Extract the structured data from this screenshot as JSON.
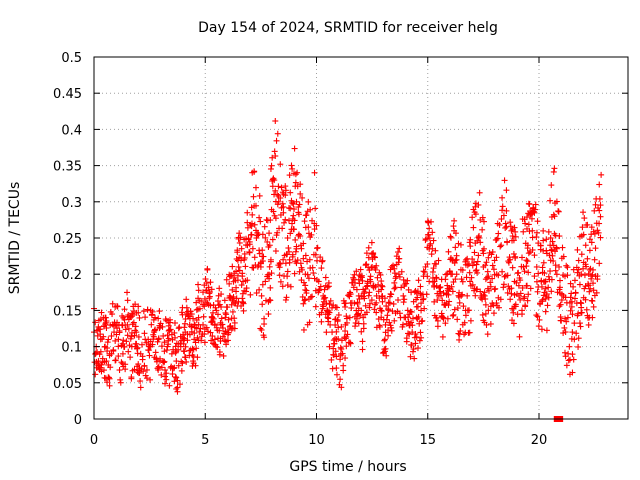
{
  "chart_data": {
    "type": "scatter",
    "title": "Day 154 of 2024, SRMTID for receiver helg",
    "xlabel": "GPS time / hours",
    "ylabel": "SRMTID / TECUs",
    "xlim": [
      0,
      24
    ],
    "ylim": [
      0,
      0.5
    ],
    "xticks": [
      0,
      5,
      10,
      15,
      20
    ],
    "xtick_labels": [
      "0",
      "5",
      "10",
      "15",
      "20"
    ],
    "yticks": [
      0,
      0.05,
      0.1,
      0.15,
      0.2,
      0.25,
      0.3,
      0.35,
      0.4,
      0.45,
      0.5
    ],
    "ytick_labels": [
      "0",
      "0.05",
      "0.1",
      "0.15",
      "0.2",
      "0.25",
      "0.3",
      "0.35",
      "0.4",
      "0.45",
      "0.5"
    ],
    "grid": true,
    "marker": "+",
    "marker_color": "#ff0000",
    "series": [
      {
        "name": "SRMTID",
        "x": [
          0.0,
          0.1,
          0.2,
          0.3,
          0.5,
          0.7,
          0.9,
          1.1,
          1.3,
          1.5,
          1.7,
          1.9,
          2.1,
          2.3,
          2.5,
          2.7,
          2.9,
          3.1,
          3.3,
          3.5,
          3.7,
          3.9,
          4.1,
          4.3,
          4.5,
          4.7,
          4.9,
          5.1,
          5.3,
          5.5,
          5.7,
          5.9,
          6.1,
          6.3,
          6.5,
          6.7,
          6.9,
          7.1,
          7.3,
          7.5,
          7.7,
          7.9,
          8.1,
          8.3,
          8.5,
          8.7,
          8.9,
          9.1,
          9.3,
          9.5,
          9.7,
          9.9,
          10.1,
          10.3,
          10.5,
          10.7,
          10.9,
          11.1,
          11.3,
          11.5,
          11.7,
          11.9,
          12.1,
          12.3,
          12.5,
          12.7,
          12.9,
          13.1,
          13.3,
          13.5,
          13.7,
          13.9,
          14.1,
          14.3,
          14.5,
          14.7,
          14.9,
          15.1,
          15.3,
          15.5,
          15.7,
          15.9,
          16.1,
          16.3,
          16.5,
          16.7,
          16.9,
          17.1,
          17.3,
          17.5,
          17.7,
          17.9,
          18.1,
          18.3,
          18.5,
          18.7,
          18.9,
          19.1,
          19.3,
          19.5,
          19.7,
          19.9,
          20.1,
          20.3,
          20.5,
          20.7,
          20.9,
          21.1,
          21.3,
          21.5,
          21.7,
          21.9,
          22.1,
          22.3,
          22.5,
          22.7
        ],
        "y": [
          0.12,
          0.1,
          0.08,
          0.11,
          0.1,
          0.09,
          0.12,
          0.11,
          0.09,
          0.13,
          0.1,
          0.12,
          0.09,
          0.11,
          0.1,
          0.12,
          0.11,
          0.08,
          0.1,
          0.09,
          0.08,
          0.1,
          0.12,
          0.13,
          0.11,
          0.14,
          0.13,
          0.16,
          0.14,
          0.15,
          0.13,
          0.14,
          0.17,
          0.16,
          0.21,
          0.19,
          0.24,
          0.27,
          0.25,
          0.21,
          0.19,
          0.24,
          0.33,
          0.3,
          0.22,
          0.25,
          0.27,
          0.3,
          0.24,
          0.2,
          0.22,
          0.27,
          0.19,
          0.17,
          0.15,
          0.12,
          0.11,
          0.09,
          0.13,
          0.14,
          0.16,
          0.17,
          0.14,
          0.19,
          0.21,
          0.17,
          0.15,
          0.13,
          0.16,
          0.18,
          0.2,
          0.17,
          0.15,
          0.12,
          0.14,
          0.16,
          0.21,
          0.24,
          0.19,
          0.17,
          0.14,
          0.18,
          0.22,
          0.2,
          0.17,
          0.15,
          0.19,
          0.23,
          0.25,
          0.21,
          0.18,
          0.16,
          0.2,
          0.24,
          0.27,
          0.22,
          0.19,
          0.17,
          0.21,
          0.24,
          0.26,
          0.21,
          0.19,
          0.18,
          0.24,
          0.28,
          0.21,
          0.17,
          0.14,
          0.12,
          0.16,
          0.2,
          0.24,
          0.18,
          0.22,
          0.27
        ],
        "zero_markers_x": [
          20.8,
          20.95
        ]
      }
    ]
  }
}
